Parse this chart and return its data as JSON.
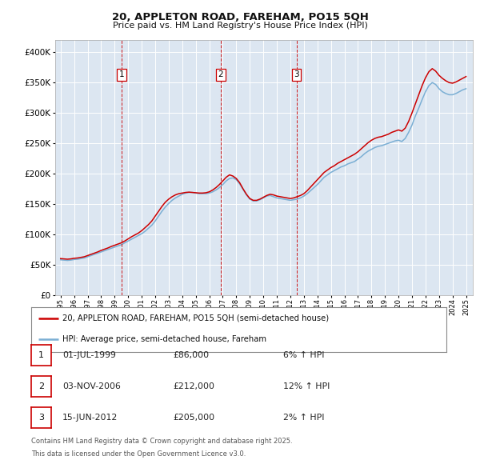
{
  "title": "20, APPLETON ROAD, FAREHAM, PO15 5QH",
  "subtitle": "Price paid vs. HM Land Registry's House Price Index (HPI)",
  "ytick_values": [
    0,
    50000,
    100000,
    150000,
    200000,
    250000,
    300000,
    350000,
    400000
  ],
  "ylim": [
    0,
    420000
  ],
  "xlim_start": 1994.6,
  "xlim_end": 2025.5,
  "plot_bg_color": "#dce6f1",
  "grid_color": "#ffffff",
  "red_color": "#cc0000",
  "blue_color": "#7bafd4",
  "transactions": [
    {
      "num": 1,
      "date": "01-JUL-1999",
      "year": 1999.5,
      "price": 86000,
      "hpi_pct": "6%"
    },
    {
      "num": 2,
      "date": "03-NOV-2006",
      "year": 2006.83,
      "price": 212000,
      "hpi_pct": "12%"
    },
    {
      "num": 3,
      "date": "15-JUN-2012",
      "year": 2012.45,
      "price": 205000,
      "hpi_pct": "2%"
    }
  ],
  "legend_line1": "20, APPLETON ROAD, FAREHAM, PO15 5QH (semi-detached house)",
  "legend_line2": "HPI: Average price, semi-detached house, Fareham",
  "footnote_line1": "Contains HM Land Registry data © Crown copyright and database right 2025.",
  "footnote_line2": "This data is licensed under the Open Government Licence v3.0.",
  "hpi_data_x": [
    1995.0,
    1995.25,
    1995.5,
    1995.75,
    1996.0,
    1996.25,
    1996.5,
    1996.75,
    1997.0,
    1997.25,
    1997.5,
    1997.75,
    1998.0,
    1998.25,
    1998.5,
    1998.75,
    1999.0,
    1999.25,
    1999.5,
    1999.75,
    2000.0,
    2000.25,
    2000.5,
    2000.75,
    2001.0,
    2001.25,
    2001.5,
    2001.75,
    2002.0,
    2002.25,
    2002.5,
    2002.75,
    2003.0,
    2003.25,
    2003.5,
    2003.75,
    2004.0,
    2004.25,
    2004.5,
    2004.75,
    2005.0,
    2005.25,
    2005.5,
    2005.75,
    2006.0,
    2006.25,
    2006.5,
    2006.75,
    2007.0,
    2007.25,
    2007.5,
    2007.75,
    2008.0,
    2008.25,
    2008.5,
    2008.75,
    2009.0,
    2009.25,
    2009.5,
    2009.75,
    2010.0,
    2010.25,
    2010.5,
    2010.75,
    2011.0,
    2011.25,
    2011.5,
    2011.75,
    2012.0,
    2012.25,
    2012.5,
    2012.75,
    2013.0,
    2013.25,
    2013.5,
    2013.75,
    2014.0,
    2014.25,
    2014.5,
    2014.75,
    2015.0,
    2015.25,
    2015.5,
    2015.75,
    2016.0,
    2016.25,
    2016.5,
    2016.75,
    2017.0,
    2017.25,
    2017.5,
    2017.75,
    2018.0,
    2018.25,
    2018.5,
    2018.75,
    2019.0,
    2019.25,
    2019.5,
    2019.75,
    2020.0,
    2020.25,
    2020.5,
    2020.75,
    2021.0,
    2021.25,
    2021.5,
    2021.75,
    2022.0,
    2022.25,
    2022.5,
    2022.75,
    2023.0,
    2023.25,
    2023.5,
    2023.75,
    2024.0,
    2024.25,
    2024.5,
    2024.75,
    2025.0
  ],
  "hpi_data_y": [
    58000,
    57500,
    57000,
    57500,
    58500,
    59000,
    60000,
    61000,
    63000,
    65000,
    67000,
    69000,
    71000,
    73000,
    75000,
    77000,
    79000,
    81000,
    83000,
    86000,
    89000,
    92000,
    95000,
    98000,
    101000,
    105000,
    110000,
    115000,
    122000,
    130000,
    138000,
    145000,
    151000,
    156000,
    160000,
    163000,
    166000,
    168000,
    169000,
    169000,
    168000,
    167000,
    167000,
    167000,
    168000,
    170000,
    173000,
    177000,
    182000,
    188000,
    192000,
    193000,
    190000,
    183000,
    174000,
    165000,
    158000,
    155000,
    155000,
    157000,
    160000,
    163000,
    164000,
    162000,
    160000,
    159000,
    158000,
    157000,
    156000,
    157000,
    158000,
    160000,
    163000,
    167000,
    172000,
    177000,
    182000,
    188000,
    194000,
    198000,
    202000,
    205000,
    208000,
    211000,
    213000,
    216000,
    218000,
    220000,
    224000,
    228000,
    233000,
    237000,
    240000,
    243000,
    245000,
    246000,
    248000,
    250000,
    252000,
    254000,
    255000,
    253000,
    258000,
    268000,
    280000,
    295000,
    308000,
    322000,
    335000,
    345000,
    350000,
    347000,
    340000,
    335000,
    332000,
    330000,
    330000,
    332000,
    335000,
    338000,
    340000
  ],
  "price_data_x": [
    1995.0,
    1995.25,
    1995.5,
    1995.75,
    1996.0,
    1996.25,
    1996.5,
    1996.75,
    1997.0,
    1997.25,
    1997.5,
    1997.75,
    1998.0,
    1998.25,
    1998.5,
    1998.75,
    1999.0,
    1999.25,
    1999.5,
    1999.75,
    2000.0,
    2000.25,
    2000.5,
    2000.75,
    2001.0,
    2001.25,
    2001.5,
    2001.75,
    2002.0,
    2002.25,
    2002.5,
    2002.75,
    2003.0,
    2003.25,
    2003.5,
    2003.75,
    2004.0,
    2004.25,
    2004.5,
    2004.75,
    2005.0,
    2005.25,
    2005.5,
    2005.75,
    2006.0,
    2006.25,
    2006.5,
    2006.75,
    2007.0,
    2007.25,
    2007.5,
    2007.75,
    2008.0,
    2008.25,
    2008.5,
    2008.75,
    2009.0,
    2009.25,
    2009.5,
    2009.75,
    2010.0,
    2010.25,
    2010.5,
    2010.75,
    2011.0,
    2011.25,
    2011.5,
    2011.75,
    2012.0,
    2012.25,
    2012.5,
    2012.75,
    2013.0,
    2013.25,
    2013.5,
    2013.75,
    2014.0,
    2014.25,
    2014.5,
    2014.75,
    2015.0,
    2015.25,
    2015.5,
    2015.75,
    2016.0,
    2016.25,
    2016.5,
    2016.75,
    2017.0,
    2017.25,
    2017.5,
    2017.75,
    2018.0,
    2018.25,
    2018.5,
    2018.75,
    2019.0,
    2019.25,
    2019.5,
    2019.75,
    2020.0,
    2020.25,
    2020.5,
    2020.75,
    2021.0,
    2021.25,
    2021.5,
    2021.75,
    2022.0,
    2022.25,
    2022.5,
    2022.75,
    2023.0,
    2023.25,
    2023.5,
    2023.75,
    2024.0,
    2024.25,
    2024.5,
    2024.75,
    2025.0
  ],
  "price_data_y": [
    60000,
    59500,
    59000,
    59500,
    60500,
    61000,
    62000,
    63000,
    65000,
    67000,
    69000,
    71000,
    73500,
    75500,
    77500,
    80000,
    82000,
    84000,
    86000,
    89000,
    92500,
    96000,
    99000,
    102000,
    106000,
    111000,
    116000,
    122000,
    130000,
    138000,
    146000,
    153000,
    158000,
    162000,
    165000,
    167000,
    168000,
    169000,
    169500,
    169000,
    168500,
    168000,
    168000,
    168500,
    170000,
    173000,
    177000,
    182000,
    188000,
    194000,
    198000,
    196000,
    192000,
    185000,
    175000,
    166000,
    159000,
    156000,
    156000,
    158000,
    161000,
    164000,
    166000,
    165000,
    163000,
    162000,
    161000,
    160000,
    159000,
    160000,
    162000,
    164000,
    167000,
    172000,
    178000,
    184000,
    190000,
    196000,
    202000,
    206000,
    210000,
    213000,
    217000,
    220000,
    223000,
    226000,
    229000,
    232000,
    236000,
    241000,
    246000,
    251000,
    255000,
    258000,
    260000,
    261000,
    263000,
    265000,
    268000,
    270000,
    272000,
    270000,
    275000,
    286000,
    300000,
    315000,
    330000,
    345000,
    358000,
    368000,
    373000,
    369000,
    362000,
    357000,
    353000,
    350000,
    349000,
    351000,
    354000,
    357000,
    360000
  ]
}
